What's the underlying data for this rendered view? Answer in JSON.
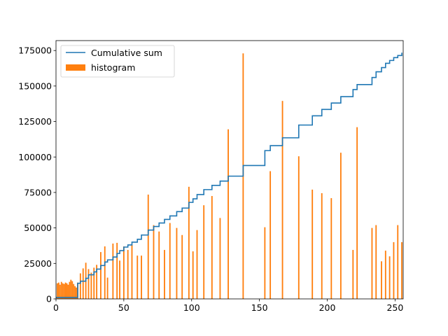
{
  "chart_data": {
    "type": "bar",
    "title": "",
    "xlabel": "",
    "ylabel": "",
    "xlim": [
      0,
      256
    ],
    "ylim": [
      0,
      182000
    ],
    "grid": false,
    "legend_placement": "top-left",
    "xticks": [
      "0",
      "50",
      "100",
      "150",
      "200",
      "250"
    ],
    "yticks": [
      "0",
      "25000",
      "50000",
      "75000",
      "100000",
      "125000",
      "150000",
      "175000"
    ],
    "colors": {
      "histogram": "#ff7f0e",
      "cumulative": "#1f77b4"
    },
    "series": [
      {
        "name": "histogram",
        "type": "bar",
        "x": [
          1,
          2,
          3,
          4,
          5,
          6,
          7,
          8,
          9,
          10,
          11,
          12,
          13,
          14,
          15,
          16,
          18,
          20,
          22,
          24,
          26,
          28,
          30,
          33,
          36,
          38,
          42,
          45,
          47,
          50,
          53,
          56,
          60,
          63,
          68,
          72,
          76,
          80,
          84,
          89,
          93,
          98,
          101,
          104,
          109,
          115,
          121,
          127,
          138,
          154,
          158,
          167,
          179,
          189,
          196,
          203,
          210,
          219,
          222,
          233,
          236,
          240,
          243,
          246,
          249,
          252,
          255
        ],
        "values": [
          11000,
          11500,
          10000,
          12000,
          11000,
          10500,
          11500,
          11000,
          10000,
          12000,
          13500,
          12500,
          10500,
          9000,
          8000,
          11500,
          18000,
          21500,
          25500,
          21000,
          18500,
          22000,
          24000,
          33000,
          37000,
          15000,
          39000,
          39500,
          27000,
          37000,
          34500,
          38000,
          30500,
          30500,
          73500,
          52000,
          47500,
          34500,
          53500,
          50000,
          45000,
          79000,
          33500,
          48500,
          66000,
          72500,
          57000,
          119500,
          173000,
          50500,
          90000,
          139500,
          100500,
          77000,
          74500,
          71000,
          103000,
          34500,
          121000,
          50000,
          52000,
          26500,
          34000,
          30000,
          40000,
          52000,
          40000
        ]
      },
      {
        "name": "Cumulative sum",
        "type": "line",
        "x": [
          0,
          16,
          18,
          22,
          24,
          28,
          30,
          33,
          36,
          38,
          42,
          45,
          47,
          50,
          53,
          56,
          60,
          63,
          68,
          72,
          76,
          80,
          84,
          89,
          93,
          98,
          101,
          104,
          109,
          115,
          121,
          127,
          138,
          154,
          158,
          167,
          179,
          189,
          196,
          203,
          210,
          219,
          222,
          233,
          236,
          240,
          243,
          246,
          249,
          252,
          255
        ],
        "values": [
          1000,
          11000,
          12500,
          14500,
          17000,
          19000,
          21000,
          23500,
          26000,
          27500,
          29500,
          32000,
          34000,
          36500,
          38000,
          40000,
          42000,
          45000,
          48500,
          51000,
          53500,
          56000,
          58500,
          61500,
          64000,
          68000,
          70500,
          73500,
          77000,
          80000,
          83000,
          86500,
          94000,
          104500,
          108000,
          113500,
          122500,
          129000,
          133500,
          138000,
          142500,
          147500,
          151000,
          156000,
          160000,
          163000,
          166000,
          168000,
          170000,
          171500,
          173500
        ]
      }
    ]
  }
}
